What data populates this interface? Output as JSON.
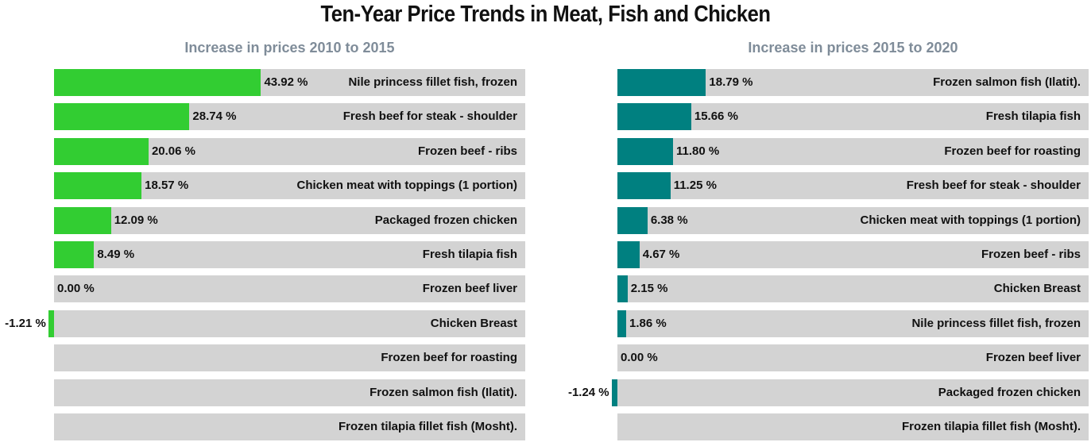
{
  "title": "Ten-Year Price Trends in Meat, Fish and Chicken",
  "chart_data": [
    {
      "type": "bar",
      "orientation": "horizontal",
      "title": "Increase in prices 2010 to 2015",
      "color": "#32cd32",
      "track_color": "#d3d3d3",
      "xlim": [
        -1.5,
        100
      ],
      "categories": [
        "Nile princess fillet fish, frozen",
        "Fresh beef for steak - shoulder",
        "Frozen beef - ribs",
        "Chicken meat with toppings (1 portion)",
        "Packaged frozen chicken",
        "Fresh tilapia fish",
        "Frozen beef liver",
        "Chicken Breast",
        "Frozen beef for roasting",
        "Frozen salmon fish (Ilatit).",
        "Frozen tilapia fillet fish (Mosht)."
      ],
      "values": [
        43.92,
        28.74,
        20.06,
        18.57,
        12.09,
        8.49,
        0.0,
        -1.21,
        null,
        null,
        null
      ],
      "value_labels": [
        "43.92 %",
        "28.74 %",
        "20.06 %",
        "18.57 %",
        "12.09 %",
        "8.49 %",
        "0.00 %",
        "-1.21 %",
        "",
        "",
        ""
      ]
    },
    {
      "type": "bar",
      "orientation": "horizontal",
      "title": "Increase in prices 2015 to 2020",
      "color": "#008080",
      "track_color": "#d3d3d3",
      "xlim": [
        -1.5,
        100
      ],
      "categories": [
        "Frozen salmon fish (Ilatit).",
        "Fresh tilapia fish",
        "Frozen beef for roasting",
        "Fresh beef for steak - shoulder",
        "Chicken meat with toppings (1 portion)",
        "Frozen beef - ribs",
        "Chicken Breast",
        "Nile princess fillet fish, frozen",
        "Frozen beef liver",
        "Packaged frozen chicken",
        "Frozen tilapia fillet fish (Mosht)."
      ],
      "values": [
        18.79,
        15.66,
        11.8,
        11.25,
        6.38,
        4.67,
        2.15,
        1.86,
        0.0,
        -1.24,
        null
      ],
      "value_labels": [
        "18.79 %",
        "15.66 %",
        "11.80 %",
        "11.25 %",
        "6.38 %",
        "4.67 %",
        "2.15 %",
        "1.86 %",
        "0.00 %",
        "-1.24 %",
        ""
      ]
    }
  ]
}
